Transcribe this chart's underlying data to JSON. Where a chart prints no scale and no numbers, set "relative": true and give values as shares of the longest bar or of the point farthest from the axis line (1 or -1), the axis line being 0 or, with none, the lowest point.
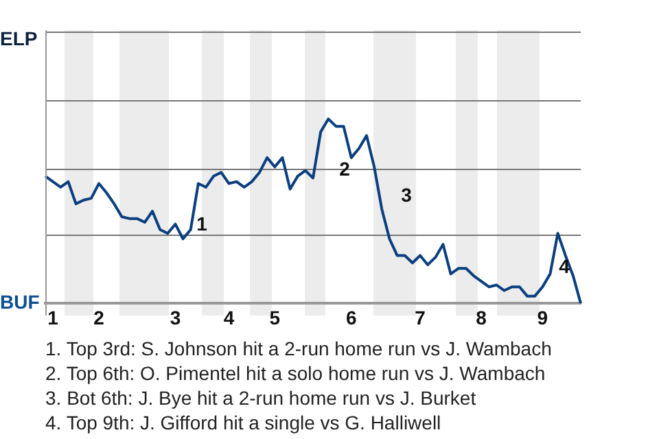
{
  "chart_data": {
    "type": "line",
    "relative": true,
    "categories": [
      null,
      "1",
      null,
      null,
      null,
      null,
      null,
      "2",
      null,
      null,
      null,
      null,
      null,
      null,
      null,
      null,
      null,
      "3",
      null,
      null,
      null,
      null,
      null,
      null,
      "4",
      null,
      null,
      null,
      null,
      null,
      "5",
      null,
      null,
      null,
      null,
      null,
      null,
      null,
      null,
      null,
      "6",
      null,
      null,
      null,
      null,
      null,
      null,
      null,
      null,
      "7",
      null,
      null,
      null,
      null,
      null,
      null,
      null,
      "8",
      null,
      null,
      null,
      null,
      null,
      null,
      null,
      "9",
      null,
      null,
      null,
      null,
      null
    ],
    "series": [
      {
        "color": "#0b3f7f",
        "values": [
          0.69,
          0.66,
          0.63,
          0.66,
          0.54,
          0.56,
          0.57,
          0.65,
          0.6,
          0.54,
          0.47,
          0.46,
          0.46,
          0.44,
          0.5,
          0.4,
          0.38,
          0.43,
          0.35,
          0.4,
          0.65,
          0.63,
          0.69,
          0.71,
          0.65,
          0.66,
          0.63,
          0.66,
          0.71,
          0.79,
          0.74,
          0.79,
          0.62,
          0.69,
          0.72,
          0.68,
          0.93,
          1,
          0.96,
          0.96,
          0.79,
          0.84,
          0.91,
          0.74,
          0.51,
          0.35,
          0.26,
          0.26,
          0.22,
          0.26,
          0.21,
          0.25,
          0.32,
          0.16,
          0.19,
          0.19,
          0.15,
          0.12,
          0.09,
          0.1,
          0.07,
          0.09,
          0.09,
          0.04,
          0.04,
          0.09,
          0.16,
          0.38,
          0.26,
          0.15,
          0
        ],
        "line_style": "solid"
      }
    ],
    "ref_lines": [
      {
        "axis": "y",
        "value": 0.37,
        "color": "#777777"
      },
      {
        "axis": "y",
        "value": 0.73,
        "color": "#777777"
      },
      {
        "axis": "y",
        "value": 1.1,
        "color": "#777777"
      },
      {
        "axis": "y",
        "value": 1.47,
        "color": "#777777"
      }
    ],
    "annotations": [
      "ELP",
      "BUF",
      "1",
      "2",
      "3",
      "4",
      "1. Top 3rd: S. Johnson hit a 2-run home run vs J. Wambach",
      "2. Top 6th: O. Pimentel hit a solo home run vs J. Wambach",
      "3. Bot 6th: J. Bye hit a 2-run home run vs J. Burket",
      "4. Top 9th: J. Gifford hit a single vs G. Halliwell"
    ],
    "legend": false,
    "marker": "none"
  }
}
